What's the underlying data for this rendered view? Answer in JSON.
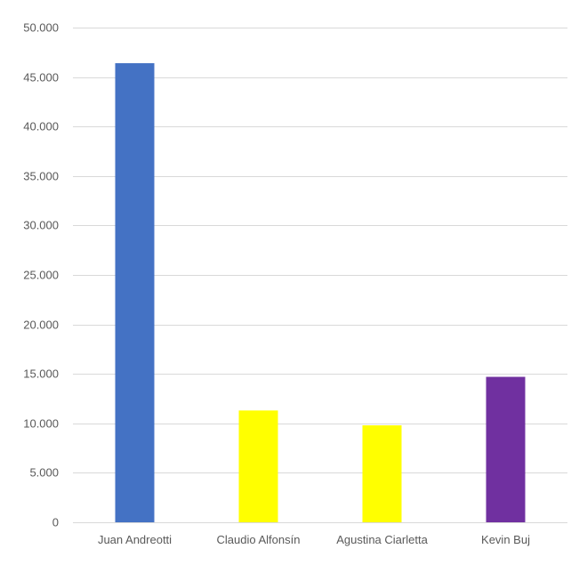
{
  "chart_data": {
    "type": "bar",
    "title": "",
    "xlabel": "",
    "ylabel": "",
    "categories": [
      "Juan Andreotti",
      "Claudio Alfonsín",
      "Agustina Ciarletta",
      "Kevin Buj"
    ],
    "values": [
      46400,
      11300,
      9800,
      14700
    ],
    "colors": [
      "#4472c4",
      "#ffff00",
      "#ffff00",
      "#7030a0"
    ],
    "ylim": [
      0,
      50000
    ],
    "yticks": [
      0,
      5000,
      10000,
      15000,
      20000,
      25000,
      30000,
      35000,
      40000,
      45000,
      50000
    ],
    "ytick_labels": [
      "0",
      "5.000",
      "10.000",
      "15.000",
      "20.000",
      "25.000",
      "30.000",
      "35.000",
      "40.000",
      "45.000",
      "50.000"
    ],
    "grid": true,
    "legend": false
  }
}
